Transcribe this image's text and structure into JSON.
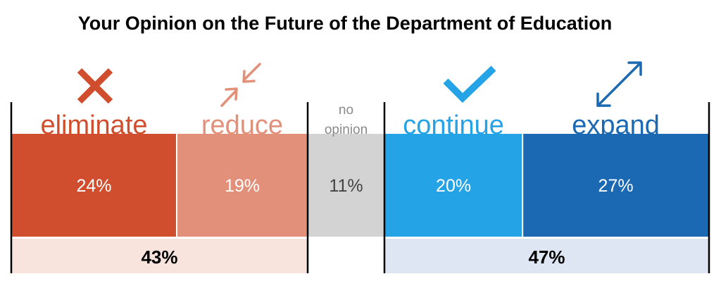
{
  "chart_data": {
    "type": "bar",
    "title": "Your Opinion on the Future of the Department of Education",
    "categories": [
      "eliminate",
      "reduce",
      "no opinion",
      "continue",
      "expand"
    ],
    "values": [
      24,
      19,
      11,
      20,
      27
    ],
    "value_labels": [
      "24%",
      "19%",
      "11%",
      "20%",
      "27%"
    ],
    "colors": [
      "#d04e2e",
      "#e3907a",
      "#d3d3d3",
      "#24a3e6",
      "#1b68b3"
    ],
    "label_colors": [
      "#d04e2e",
      "#e3907a",
      "#8a8a8a",
      "#24a3e6",
      "#1b68b3"
    ],
    "value_text_colors": [
      "#ffffff",
      "#ffffff",
      "#444444",
      "#ffffff",
      "#ffffff"
    ],
    "icons": [
      "x-mark-icon",
      "compress-arrows-icon",
      "",
      "check-mark-icon",
      "expand-arrows-icon"
    ],
    "groups": [
      {
        "label": "43%",
        "value": 43,
        "members": [
          "eliminate",
          "reduce"
        ],
        "fill": "#f8e4dd"
      },
      {
        "label": "47%",
        "value": 47,
        "members": [
          "continue",
          "expand"
        ],
        "fill": "#dde6f2"
      }
    ],
    "stacked_100": true,
    "grid": false,
    "legend": "none"
  }
}
